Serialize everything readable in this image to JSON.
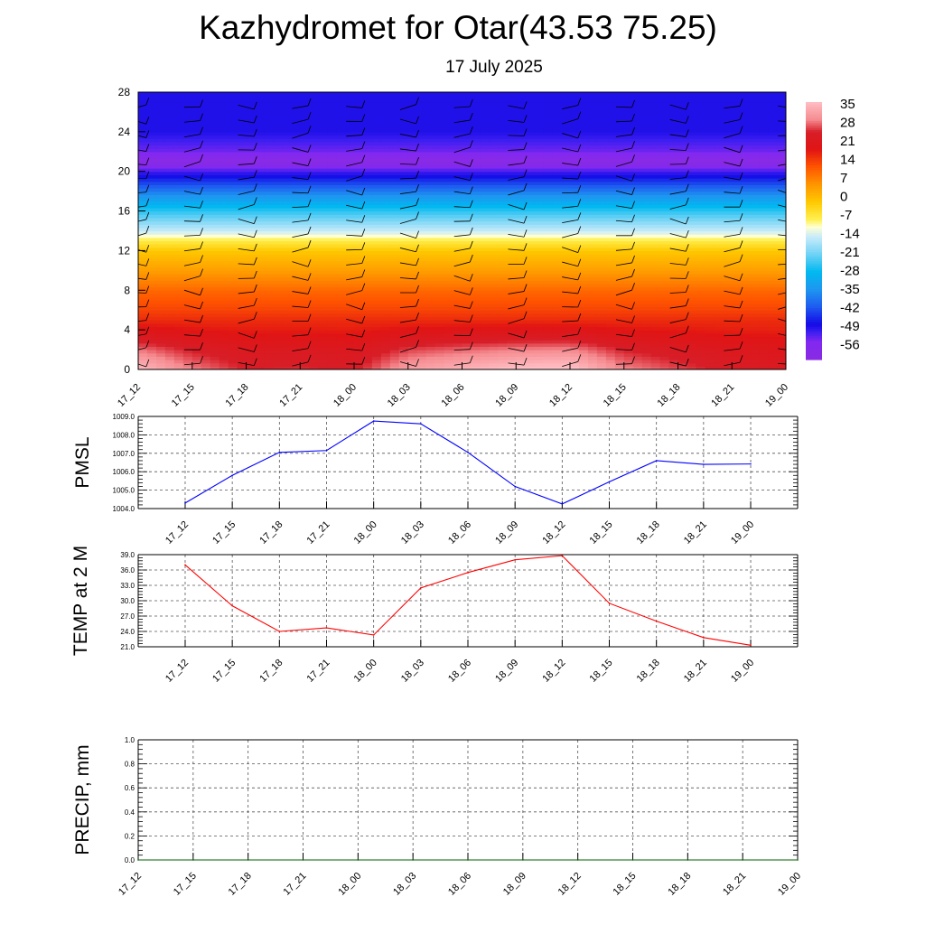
{
  "title": "Kazhydromet for Otar(43.53 75.25)",
  "subtitle": "17 July 2025",
  "chart_data": [
    {
      "type": "heatmap",
      "ylim": [
        0,
        28
      ],
      "yticks": [
        "0",
        "4",
        "8",
        "12",
        "16",
        "20",
        "24",
        "28"
      ],
      "x": [
        "17_12",
        "17_15",
        "17_18",
        "17_21",
        "18_00",
        "18_03",
        "18_06",
        "18_09",
        "18_12",
        "18_15",
        "18_18",
        "18_21",
        "19_00"
      ],
      "colorbar": {
        "labels": [
          "35",
          "28",
          "21",
          "14",
          "7",
          "0",
          "-7",
          "-14",
          "-21",
          "-28",
          "-35",
          "-42",
          "-49",
          "-56"
        ],
        "range": [
          -63,
          40
        ]
      },
      "profile": {
        "heights": [
          0,
          2,
          4,
          6,
          8,
          10,
          12,
          13,
          14,
          16,
          18,
          20,
          21,
          22,
          24,
          28
        ],
        "temps": [
          33,
          28,
          21,
          16,
          12,
          6,
          0,
          -6,
          -14,
          -25,
          -38,
          -52,
          -62,
          -55,
          -50,
          -50
        ]
      },
      "surface_temp": [
        37,
        29,
        24,
        24.6,
        23.3,
        32.5,
        35.5,
        38,
        38.8,
        29.5,
        26,
        22.8,
        21.3
      ]
    },
    {
      "type": "line",
      "ylabel": "PMSL",
      "ylim": [
        1004.0,
        1009.0
      ],
      "yticks": [
        "1004.0",
        "1005.0",
        "1006.0",
        "1007.0",
        "1008.0",
        "1009.0"
      ],
      "x": [
        "17_12",
        "17_15",
        "17_18",
        "17_21",
        "18_00",
        "18_03",
        "18_06",
        "18_09",
        "18_12",
        "18_15",
        "18_18",
        "18_21",
        "19_00"
      ],
      "series": [
        {
          "values": [
            1004.3,
            1005.8,
            1007.05,
            1007.15,
            1008.75,
            1008.6,
            1007.05,
            1005.2,
            1004.25,
            1005.45,
            1006.6,
            1006.4,
            1006.42
          ],
          "color": "#0000ff"
        }
      ]
    },
    {
      "type": "line",
      "ylabel": "TEMP at 2 M",
      "ylim": [
        21.0,
        39.0
      ],
      "yticks": [
        "21.0",
        "24.0",
        "27.0",
        "30.0",
        "33.0",
        "36.0",
        "39.0"
      ],
      "x": [
        "17_12",
        "17_15",
        "17_18",
        "17_21",
        "18_00",
        "18_03",
        "18_06",
        "18_09",
        "18_12",
        "18_15",
        "18_18",
        "18_21",
        "19_00"
      ],
      "series": [
        {
          "values": [
            37.0,
            29.0,
            24.0,
            24.7,
            23.3,
            32.5,
            35.5,
            38.0,
            38.8,
            29.5,
            26.0,
            22.8,
            21.3
          ],
          "color": "#ff0000"
        }
      ]
    },
    {
      "type": "line",
      "ylabel": "PRECIP, mm",
      "ylim": [
        0.0,
        1.0
      ],
      "yticks": [
        "0.0",
        "0.2",
        "0.4",
        "0.6",
        "0.8",
        "1.0"
      ],
      "x": [
        "17_12",
        "17_15",
        "17_18",
        "17_21",
        "18_00",
        "18_03",
        "18_06",
        "18_09",
        "18_12",
        "18_15",
        "18_18",
        "18_21",
        "19_00"
      ],
      "series": [
        {
          "values": [
            0,
            0,
            0,
            0,
            0,
            0,
            0,
            0,
            0,
            0,
            0,
            0,
            0
          ],
          "color": "#006400"
        }
      ]
    }
  ]
}
